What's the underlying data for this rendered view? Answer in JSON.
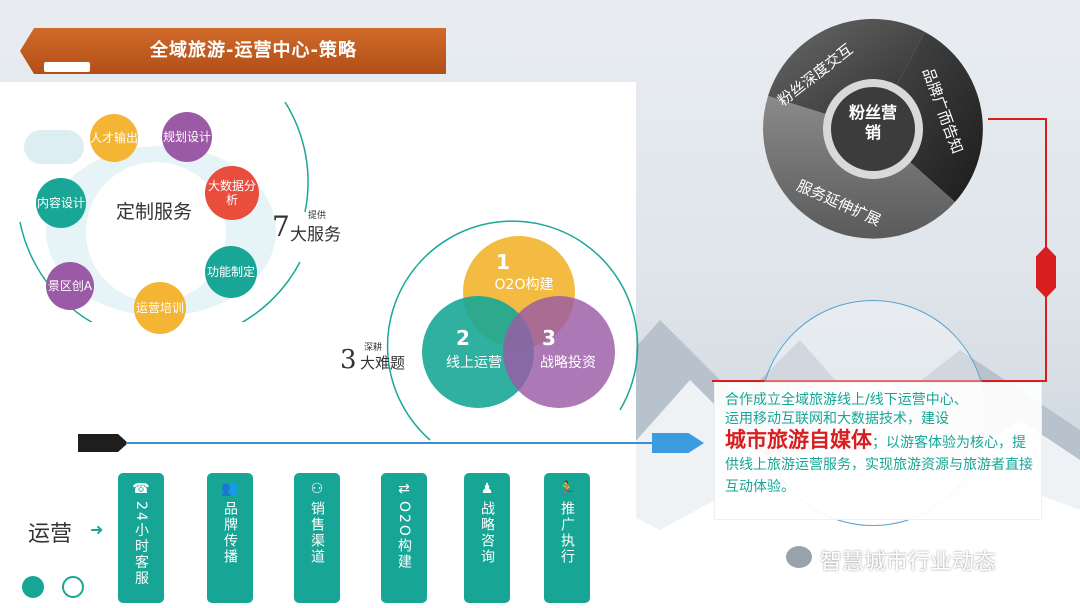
{
  "header": {
    "title": "全域旅游-运营中心-策略"
  },
  "custom_service": {
    "center": "定制服务",
    "count": "7",
    "provide_small": "提供",
    "provide_label": "大服务",
    "nodes": [
      {
        "label": "人才输出",
        "color": "#f3b533"
      },
      {
        "label": "规划设计",
        "color": "#9b5aa6"
      },
      {
        "label": "大数据分析",
        "color": "#e94e3c"
      },
      {
        "label": "功能制定",
        "color": "#18a797"
      },
      {
        "label": "运营培训",
        "color": "#f3b533"
      },
      {
        "label": "景区创A",
        "color": "#9b5aa6"
      },
      {
        "label": "内容设计",
        "color": "#18a797"
      }
    ]
  },
  "difficulties": {
    "count": "3",
    "small": "深耕",
    "label": "大难题",
    "circles": [
      {
        "num": "1",
        "label": "O2O构建",
        "color": "#f3b533"
      },
      {
        "num": "2",
        "label": "线上运营",
        "color": "#18a797"
      },
      {
        "num": "3",
        "label": "战略投资",
        "color": "#9b5aa6"
      }
    ]
  },
  "fans": {
    "center": "粉丝营销",
    "segments": [
      "粉丝深度交互",
      "品牌广而告知",
      "服务延伸扩展"
    ]
  },
  "operations": {
    "label": "运营",
    "items": [
      {
        "label": "24小时客服",
        "icon": "headset-icon",
        "glyph": "☎"
      },
      {
        "label": "品牌传播",
        "icon": "people-icon",
        "glyph": "👥"
      },
      {
        "label": "销售渠道",
        "icon": "network-icon",
        "glyph": "⚇"
      },
      {
        "label": "O2O构建",
        "icon": "o2o-icon",
        "glyph": "⇄"
      },
      {
        "label": "战略咨询",
        "icon": "presenter-icon",
        "glyph": "♟"
      },
      {
        "label": "推广执行",
        "icon": "runner-icon",
        "glyph": "🏃"
      }
    ]
  },
  "info": {
    "line1": "合作成立全域旅游线上/线下运营中心、",
    "line2": "运用移动互联网和大数据技术，建设",
    "highlight": "城市旅游自媒体",
    "rest": "；以游客体验为核心，提供线上旅游运营服务，实现旅游资源与旅游者直接互动体验。"
  },
  "watermark": {
    "text": "智慧城市行业动态"
  },
  "colors": {
    "teal": "#18a797",
    "orange": "#f3b533",
    "purple": "#9b5aa6",
    "red": "#d81e1e",
    "banner": "#c15a20"
  }
}
